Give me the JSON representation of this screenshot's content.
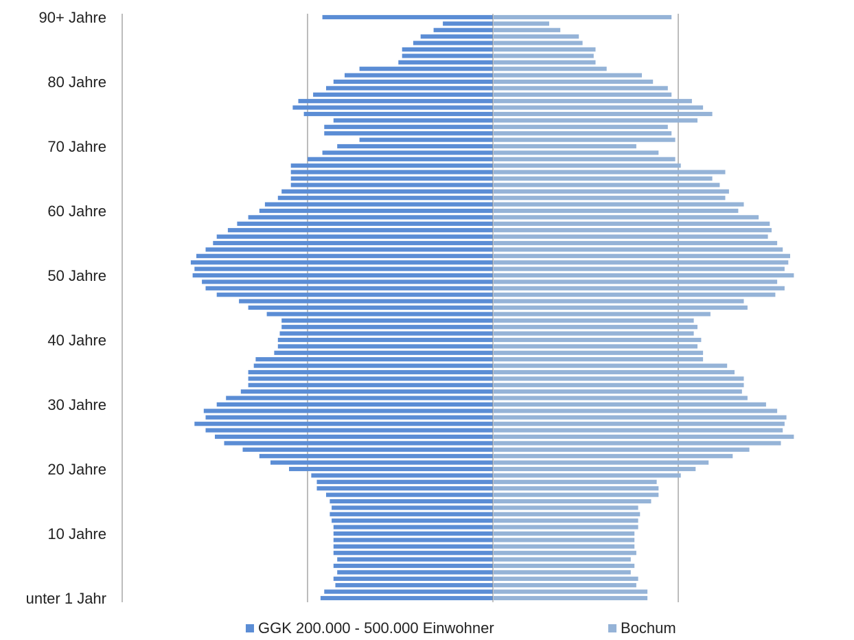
{
  "chart_data": {
    "type": "bar",
    "orientation": "horizontal-population-pyramid",
    "categories": [
      "unter 1 Jahr",
      "1",
      "2",
      "3",
      "4",
      "5",
      "6",
      "7",
      "8",
      "9",
      "10 Jahre",
      "11",
      "12",
      "13",
      "14",
      "15",
      "16",
      "17",
      "18",
      "19",
      "20 Jahre",
      "21",
      "22",
      "23",
      "24",
      "25",
      "26",
      "27",
      "28",
      "29",
      "30 Jahre",
      "31",
      "32",
      "33",
      "34",
      "35",
      "36",
      "37",
      "38",
      "39",
      "40 Jahre",
      "41",
      "42",
      "43",
      "44",
      "45",
      "46",
      "47",
      "48",
      "49",
      "50 Jahre",
      "51",
      "52",
      "53",
      "54",
      "55",
      "56",
      "57",
      "58",
      "59",
      "60 Jahre",
      "61",
      "62",
      "63",
      "64",
      "65",
      "66",
      "67",
      "68",
      "69",
      "70 Jahre",
      "71",
      "72",
      "73",
      "74",
      "75",
      "76",
      "77",
      "78",
      "79",
      "80 Jahre",
      "81",
      "82",
      "83",
      "84",
      "85",
      "86",
      "87",
      "88",
      "89",
      "90+ Jahre"
    ],
    "tick_labels": [
      "unter 1 Jahr",
      "10 Jahre",
      "20 Jahre",
      "30 Jahre",
      "40 Jahre",
      "50 Jahre",
      "60 Jahre",
      "70 Jahre",
      "80 Jahre",
      "90+ Jahre"
    ],
    "tick_indices": [
      0,
      10,
      20,
      30,
      40,
      50,
      60,
      70,
      80,
      90
    ],
    "series": [
      {
        "name": "GGK 200.000 - 500.000 Einwohner",
        "color": "#5b8dd5",
        "side": "left",
        "values": [
          0.93,
          0.91,
          0.85,
          0.86,
          0.84,
          0.86,
          0.84,
          0.86,
          0.86,
          0.86,
          0.86,
          0.86,
          0.87,
          0.88,
          0.87,
          0.88,
          0.9,
          0.95,
          0.95,
          0.98,
          1.1,
          1.2,
          1.26,
          1.35,
          1.45,
          1.5,
          1.55,
          1.61,
          1.55,
          1.56,
          1.49,
          1.44,
          1.36,
          1.32,
          1.32,
          1.32,
          1.29,
          1.28,
          1.18,
          1.16,
          1.16,
          1.15,
          1.14,
          1.14,
          1.22,
          1.32,
          1.37,
          1.49,
          1.55,
          1.57,
          1.62,
          1.61,
          1.63,
          1.6,
          1.55,
          1.51,
          1.49,
          1.43,
          1.38,
          1.32,
          1.26,
          1.23,
          1.16,
          1.14,
          1.09,
          1.09,
          1.09,
          1.09,
          1.0,
          0.92,
          0.84,
          0.72,
          0.91,
          0.91,
          0.86,
          1.02,
          1.08,
          1.05,
          0.97,
          0.9,
          0.86,
          0.8,
          0.72,
          0.51,
          0.49,
          0.49,
          0.43,
          0.39,
          0.32,
          0.27,
          0.92
        ]
      },
      {
        "name": "Bochum",
        "color": "#95b3d7",
        "side": "right",
        "values": [
          0.83,
          0.83,
          0.77,
          0.78,
          0.74,
          0.76,
          0.74,
          0.77,
          0.76,
          0.76,
          0.76,
          0.78,
          0.78,
          0.79,
          0.78,
          0.85,
          0.89,
          0.89,
          0.88,
          1.01,
          1.09,
          1.16,
          1.29,
          1.38,
          1.55,
          1.62,
          1.56,
          1.57,
          1.58,
          1.53,
          1.47,
          1.37,
          1.34,
          1.35,
          1.35,
          1.3,
          1.26,
          1.13,
          1.13,
          1.1,
          1.12,
          1.08,
          1.1,
          1.08,
          1.17,
          1.37,
          1.35,
          1.52,
          1.57,
          1.53,
          1.62,
          1.57,
          1.59,
          1.6,
          1.56,
          1.53,
          1.48,
          1.5,
          1.49,
          1.43,
          1.32,
          1.35,
          1.25,
          1.27,
          1.22,
          1.18,
          1.25,
          1.01,
          0.98,
          0.89,
          0.77,
          0.98,
          0.96,
          0.94,
          1.1,
          1.18,
          1.13,
          1.07,
          0.96,
          0.94,
          0.86,
          0.8,
          0.61,
          0.55,
          0.54,
          0.55,
          0.48,
          0.46,
          0.36,
          0.3,
          0.96
        ]
      }
    ],
    "xlim": [
      -2,
      2
    ],
    "grid": true
  },
  "legend": {
    "items": [
      {
        "label": "GGK 200.000 - 500.000 Einwohner",
        "color": "#5b8dd5"
      },
      {
        "label": "Bochum",
        "color": "#95b3d7"
      }
    ]
  }
}
